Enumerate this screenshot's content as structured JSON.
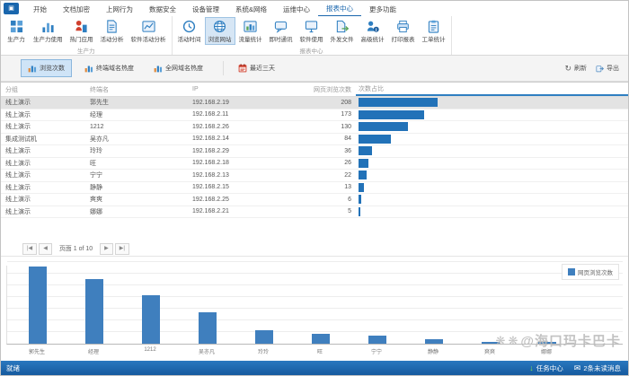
{
  "menu": {
    "tabs": [
      {
        "label": "开始",
        "active": false
      },
      {
        "label": "文档加密",
        "active": false
      },
      {
        "label": "上网行为",
        "active": false
      },
      {
        "label": "数据安全",
        "active": false
      },
      {
        "label": "设备管理",
        "active": false
      },
      {
        "label": "系统&网络",
        "active": false
      },
      {
        "label": "运维中心",
        "active": false
      },
      {
        "label": "报表中心",
        "active": true
      },
      {
        "label": "更多功能",
        "active": false
      }
    ]
  },
  "ribbon": {
    "groups": [
      {
        "label": "生产力",
        "buttons": [
          {
            "label": "生产力",
            "icon": "grid-icon",
            "selected": false
          },
          {
            "label": "生产力使用",
            "icon": "bar-chart-icon",
            "selected": false
          },
          {
            "label": "热门应用",
            "icon": "hot-app-icon",
            "selected": false
          },
          {
            "label": "活动分析",
            "icon": "activity-doc-icon",
            "selected": false
          },
          {
            "label": "软件活动分析",
            "icon": "software-analysis-icon",
            "selected": false
          }
        ]
      },
      {
        "label": "报表中心",
        "buttons": [
          {
            "label": "活动时间",
            "icon": "clock-icon",
            "selected": false
          },
          {
            "label": "浏览网站",
            "icon": "globe-icon",
            "selected": true
          },
          {
            "label": "流量统计",
            "icon": "traffic-chart-icon",
            "selected": false
          },
          {
            "label": "即时通讯",
            "icon": "chat-icon",
            "selected": false
          },
          {
            "label": "软件使用",
            "icon": "monitor-icon",
            "selected": false
          },
          {
            "label": "外发文件",
            "icon": "file-export-icon",
            "selected": false
          },
          {
            "label": "高级统计",
            "icon": "advanced-stats-icon",
            "selected": false
          },
          {
            "label": "打印报表",
            "icon": "printer-icon",
            "selected": false
          },
          {
            "label": "工单统计",
            "icon": "work-order-icon",
            "selected": false
          }
        ]
      }
    ]
  },
  "toolbar": {
    "views": [
      {
        "label": "浏览次数",
        "icon": "view-icon",
        "active": true
      },
      {
        "label": "终端域名热度",
        "icon": "view-icon",
        "active": false
      },
      {
        "label": "全网域名热度",
        "icon": "view-icon",
        "active": false
      }
    ],
    "date_range": "最近三天",
    "refresh_label": "刷新",
    "export_label": "导出"
  },
  "table": {
    "columns": [
      "分组",
      "终端名",
      "IP",
      "网页浏览次数",
      "次数占比"
    ],
    "sorted_column": "次数占比",
    "max_count": 208,
    "selected_row": 0,
    "rows": [
      {
        "group": "线上演示",
        "name": "郭先生",
        "ip": "192.168.2.19",
        "count": 208
      },
      {
        "group": "线上演示",
        "name": "经理",
        "ip": "192.168.2.11",
        "count": 173
      },
      {
        "group": "线上演示",
        "name": "1212",
        "ip": "192.168.2.26",
        "count": 130
      },
      {
        "group": "集成测试机",
        "name": "吴亦凡",
        "ip": "192.168.2.14",
        "count": 84
      },
      {
        "group": "线上演示",
        "name": "玲玲",
        "ip": "192.168.2.29",
        "count": 36
      },
      {
        "group": "线上演示",
        "name": "旺",
        "ip": "192.168.2.18",
        "count": 26
      },
      {
        "group": "线上演示",
        "name": "宁宁",
        "ip": "192.168.2.13",
        "count": 22
      },
      {
        "group": "线上演示",
        "name": "静静",
        "ip": "192.168.2.15",
        "count": 13
      },
      {
        "group": "线上演示",
        "name": "爽爽",
        "ip": "192.168.2.25",
        "count": 6
      },
      {
        "group": "线上演示",
        "name": "娜娜",
        "ip": "192.168.2.21",
        "count": 5
      }
    ]
  },
  "pagination": {
    "first": "|◀",
    "prev": "◀",
    "label": "页面 1 of 10",
    "next": "▶",
    "last": "▶|"
  },
  "chart_data": {
    "type": "bar",
    "title": "",
    "categories": [
      "郭先生",
      "经理",
      "1212",
      "吴亦凡",
      "玲玲",
      "旺",
      "宁宁",
      "静静",
      "爽爽",
      "娜娜"
    ],
    "values": [
      208,
      173,
      130,
      84,
      36,
      26,
      22,
      13,
      6,
      5
    ],
    "xlabel": "",
    "ylabel": "",
    "ylim": [
      0,
      220
    ],
    "grid": true,
    "legend": [
      "网页浏览次数"
    ],
    "legend_position": "top-right",
    "bar_color": "#3f7fbe"
  },
  "status_bar": {
    "ready": "就绪",
    "task_center": "任务中心",
    "unread": "2条未读消息"
  },
  "watermark": {
    "text": "@海口玛卡巴卡"
  },
  "colors": {
    "accent": "#1966ad",
    "table_bar": "#2272b8",
    "chart_bar": "#3f7fbe",
    "status_bar_blue": "#1c6bb5",
    "selected_row": "#e3e3e3"
  }
}
